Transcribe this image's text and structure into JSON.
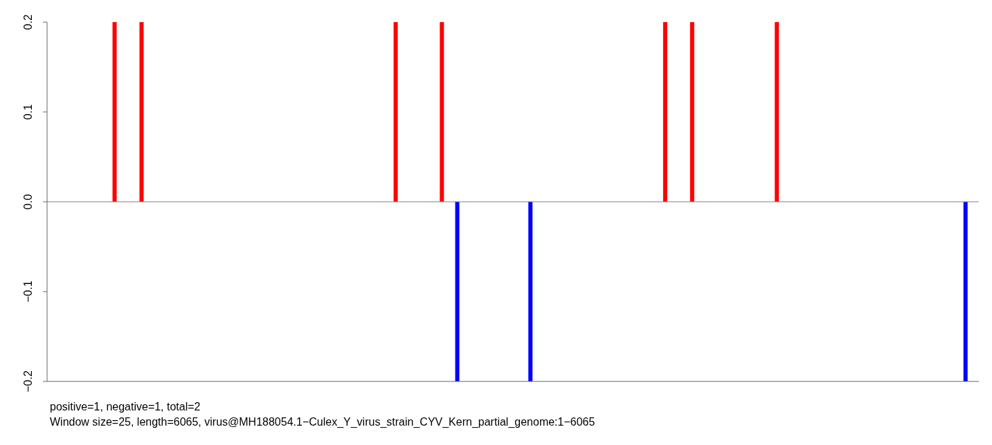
{
  "chart_data": {
    "type": "bar",
    "stacked": true,
    "tick_labels": "y",
    "categories": [
      null,
      null,
      null,
      null,
      null,
      null,
      null,
      null,
      null,
      null,
      null,
      null,
      null,
      null,
      null,
      null,
      null,
      null,
      null,
      null,
      null,
      null,
      null,
      null,
      null,
      null,
      null,
      null,
      null,
      null,
      null,
      null,
      null,
      null,
      null,
      null,
      null,
      null,
      null,
      null,
      null,
      null,
      null,
      null,
      null,
      null,
      null,
      null,
      null,
      null,
      null,
      null,
      null,
      null,
      null,
      null,
      null,
      null,
      null,
      null,
      null,
      null,
      null,
      null,
      null,
      null,
      null,
      null,
      null,
      null,
      null,
      null,
      null,
      null,
      null,
      null,
      null,
      null,
      null,
      null,
      null,
      null,
      null,
      null,
      null,
      null,
      null,
      null,
      null,
      null,
      null,
      null,
      null,
      null,
      null,
      null,
      null,
      null,
      null,
      null,
      null,
      null,
      null,
      null,
      null,
      null,
      null,
      null,
      null,
      null,
      null,
      null,
      null,
      null,
      null,
      null,
      null,
      null,
      null,
      null,
      null,
      null,
      null,
      null,
      null,
      null,
      null,
      null,
      null,
      null,
      null,
      null,
      null,
      null,
      null,
      null,
      null,
      null,
      null,
      null,
      null,
      null,
      null,
      null,
      null,
      null,
      null,
      null,
      null,
      null,
      null,
      null,
      null,
      null,
      null,
      null,
      null,
      null,
      null,
      null,
      null,
      null,
      null,
      null,
      null,
      null,
      null,
      null,
      null,
      null,
      null,
      null,
      null,
      null,
      null,
      null,
      null,
      null,
      null,
      null,
      null,
      null,
      null,
      null,
      null,
      null,
      null,
      null,
      null,
      null,
      null,
      null,
      null,
      null,
      null,
      null,
      null,
      null,
      null,
      null,
      null,
      null,
      null,
      null,
      null,
      null,
      null,
      null,
      null,
      null,
      null,
      null,
      null,
      null,
      null,
      null,
      null,
      null,
      null,
      null,
      null,
      null,
      null,
      null,
      null,
      null,
      null,
      null,
      null,
      null,
      null,
      null,
      null,
      null,
      null,
      null,
      null,
      null,
      null,
      null,
      null,
      null
    ],
    "series": [
      {
        "color": "#ff0000",
        "values": [
          null,
          null,
          null,
          null,
          null,
          null,
          null,
          null,
          null,
          null,
          null,
          null,
          null,
          null,
          null,
          null,
          null,
          0.2,
          null,
          null,
          null,
          null,
          null,
          null,
          0.2,
          null,
          null,
          null,
          null,
          null,
          null,
          null,
          null,
          null,
          null,
          null,
          null,
          null,
          null,
          null,
          null,
          null,
          null,
          null,
          null,
          null,
          null,
          null,
          null,
          null,
          null,
          null,
          null,
          null,
          null,
          null,
          null,
          null,
          null,
          null,
          null,
          null,
          null,
          null,
          null,
          null,
          null,
          null,
          null,
          null,
          null,
          null,
          null,
          null,
          null,
          null,
          null,
          null,
          null,
          null,
          null,
          null,
          null,
          null,
          null,
          null,
          null,
          null,
          null,
          null,
          0.2,
          null,
          null,
          null,
          null,
          null,
          null,
          null,
          null,
          null,
          null,
          null,
          0.2,
          null,
          null,
          null,
          null,
          null,
          null,
          null,
          null,
          null,
          null,
          null,
          null,
          null,
          null,
          null,
          null,
          null,
          null,
          null,
          null,
          null,
          null,
          null,
          null,
          null,
          null,
          null,
          null,
          null,
          null,
          null,
          null,
          null,
          null,
          null,
          null,
          null,
          null,
          null,
          null,
          null,
          null,
          null,
          null,
          null,
          null,
          null,
          null,
          null,
          null,
          null,
          null,
          null,
          null,
          null,
          null,
          null,
          0.2,
          null,
          null,
          null,
          null,
          null,
          null,
          0.2,
          null,
          null,
          null,
          null,
          null,
          null,
          null,
          null,
          null,
          null,
          null,
          null,
          null,
          null,
          null,
          null,
          null,
          null,
          null,
          null,
          null,
          0.2,
          null,
          null,
          null,
          null,
          null,
          null,
          null,
          null,
          null,
          null,
          null,
          null,
          null,
          null,
          null,
          null,
          null,
          null,
          null,
          null,
          null,
          null,
          null,
          null,
          null,
          null,
          null,
          null,
          null,
          null,
          null,
          null,
          null,
          null,
          null,
          null,
          null,
          null,
          null,
          null,
          null,
          null,
          null,
          null,
          null,
          null,
          null,
          null,
          null,
          null,
          null,
          null
        ]
      },
      {
        "color": "#0000ff",
        "values": [
          null,
          null,
          null,
          null,
          null,
          null,
          null,
          null,
          null,
          null,
          null,
          null,
          null,
          null,
          null,
          null,
          null,
          null,
          null,
          null,
          null,
          null,
          null,
          null,
          null,
          null,
          null,
          null,
          null,
          null,
          null,
          null,
          null,
          null,
          null,
          null,
          null,
          null,
          null,
          null,
          null,
          null,
          null,
          null,
          null,
          null,
          null,
          null,
          null,
          null,
          null,
          null,
          null,
          null,
          null,
          null,
          null,
          null,
          null,
          null,
          null,
          null,
          null,
          null,
          null,
          null,
          null,
          null,
          null,
          null,
          null,
          null,
          null,
          null,
          null,
          null,
          null,
          null,
          null,
          null,
          null,
          null,
          null,
          null,
          null,
          null,
          null,
          null,
          null,
          null,
          null,
          null,
          null,
          null,
          null,
          null,
          null,
          null,
          null,
          null,
          null,
          null,
          null,
          null,
          null,
          null,
          -0.2,
          null,
          null,
          null,
          null,
          null,
          null,
          null,
          null,
          null,
          null,
          null,
          null,
          null,
          null,
          null,
          null,
          null,
          null,
          -0.2,
          null,
          null,
          null,
          null,
          null,
          null,
          null,
          null,
          null,
          null,
          null,
          null,
          null,
          null,
          null,
          null,
          null,
          null,
          null,
          null,
          null,
          null,
          null,
          null,
          null,
          null,
          null,
          null,
          null,
          null,
          null,
          null,
          null,
          null,
          null,
          null,
          null,
          null,
          null,
          null,
          null,
          null,
          null,
          null,
          null,
          null,
          null,
          null,
          null,
          null,
          null,
          null,
          null,
          null,
          null,
          null,
          null,
          null,
          null,
          null,
          null,
          null,
          null,
          null,
          null,
          null,
          null,
          null,
          null,
          null,
          null,
          null,
          null,
          null,
          null,
          null,
          null,
          null,
          null,
          null,
          null,
          null,
          null,
          null,
          null,
          null,
          null,
          null,
          null,
          null,
          null,
          null,
          null,
          null,
          null,
          null,
          null,
          null,
          null,
          null,
          null,
          null,
          null,
          null,
          null,
          null,
          null,
          null,
          null,
          null,
          null,
          null,
          -0.2,
          null,
          null,
          null
        ]
      }
    ],
    "ylim": [
      -0.2,
      0.2
    ],
    "yticks": [
      {
        "value": -0.2,
        "label": "−0.2"
      },
      {
        "value": -0.1,
        "label": "−0.1"
      },
      {
        "value": 0,
        "label": "0.0"
      },
      0.1,
      0.2
    ],
    "ref_lines": [
      {
        "axis": "y",
        "value": 0,
        "color": "#808080"
      }
    ],
    "annotations": [
      "positive=1, negative=1, total=2",
      "Window size=25, length=6065, virus@MH188054.1−Culex_Y_virus_strain_CYV_Kern_partial_genome:1−6065"
    ]
  }
}
